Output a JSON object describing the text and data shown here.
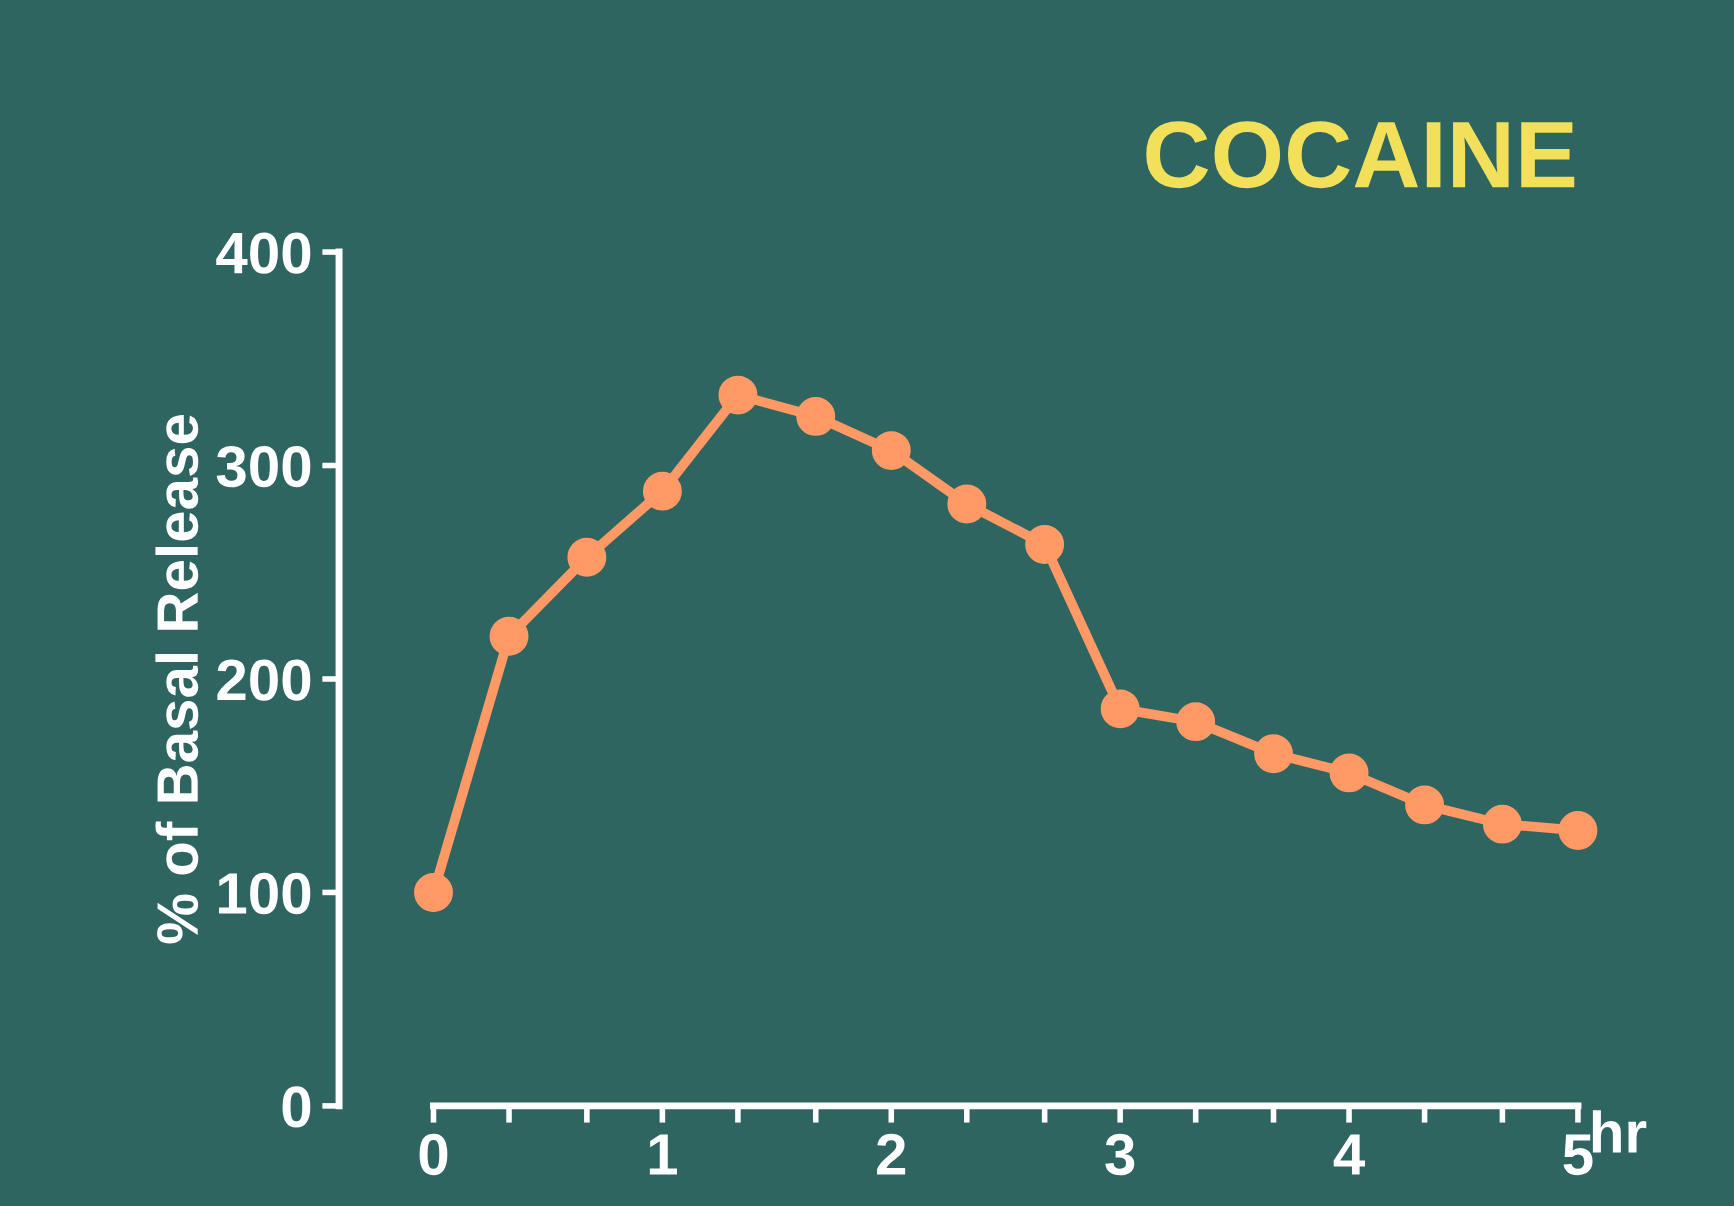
{
  "chart_data": {
    "type": "line",
    "title": "COCAINE",
    "ylabel": "% of Basal Release",
    "xlabel": "hr",
    "x": [
      0,
      0.33,
      0.67,
      1,
      1.33,
      1.67,
      2,
      2.33,
      2.67,
      3,
      3.33,
      3.67,
      4,
      4.33,
      4.67,
      5
    ],
    "series": [
      {
        "color": "#ff9966",
        "values": [
          100,
          220,
          257,
          288,
          333,
          323,
          307,
          282,
          263,
          186,
          180,
          165,
          156,
          141,
          132,
          129
        ]
      }
    ],
    "xlim": [
      0,
      5
    ],
    "ylim": [
      0,
      400
    ],
    "xticks": [
      0,
      {
        "value": 0.33,
        "label": null
      },
      {
        "value": 0.67,
        "label": null
      },
      1,
      {
        "value": 1.33,
        "label": null
      },
      {
        "value": 1.67,
        "label": null
      },
      2,
      {
        "value": 2.33,
        "label": null
      },
      {
        "value": 2.67,
        "label": null
      },
      3,
      {
        "value": 3.33,
        "label": null
      },
      {
        "value": 3.67,
        "label": null
      },
      4,
      {
        "value": 4.33,
        "label": null
      },
      {
        "value": 4.67,
        "label": null
      },
      5
    ],
    "yticks": [
      0,
      100,
      200,
      300,
      400
    ],
    "marker": "circle",
    "line_style": "solid",
    "grid": false,
    "legend": false
  }
}
